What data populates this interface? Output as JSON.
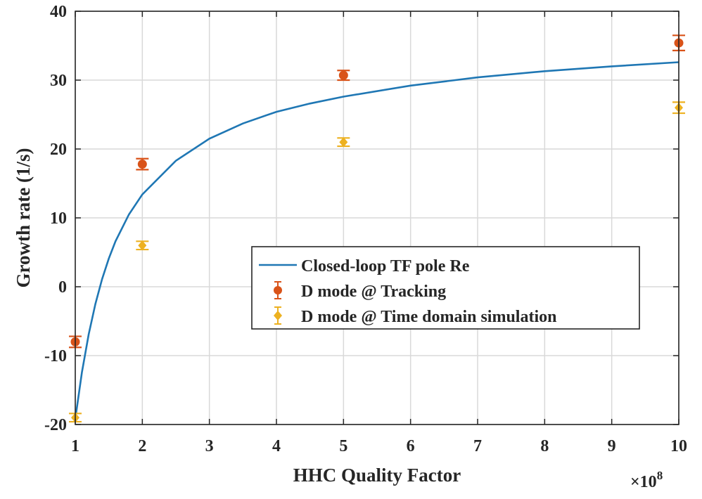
{
  "chart_data": {
    "type": "scatter",
    "xlabel": "HHC Quality Factor",
    "ylabel": "Growth rate (1/s)",
    "x_multiplier_label": "×10",
    "x_multiplier_exponent": "8",
    "xlim": [
      1,
      10
    ],
    "ylim": [
      -20,
      40
    ],
    "x_ticks": [
      1,
      2,
      3,
      4,
      5,
      6,
      7,
      8,
      9,
      10
    ],
    "x_tick_labels": [
      "1",
      "2",
      "3",
      "4",
      "5",
      "6",
      "7",
      "8",
      "9",
      "10"
    ],
    "y_ticks": [
      -20,
      -10,
      0,
      10,
      20,
      30,
      40
    ],
    "y_tick_labels": [
      "-20",
      "-10",
      "0",
      "10",
      "20",
      "30",
      "40"
    ],
    "grid": true,
    "legend_position": "center-right",
    "series": [
      {
        "name": "Closed-loop TF pole Re",
        "kind": "line",
        "color": "#1f77b4",
        "x": [
          1,
          1.1,
          1.2,
          1.3,
          1.4,
          1.5,
          1.6,
          1.8,
          2,
          2.5,
          3,
          3.5,
          4,
          4.5,
          5,
          6,
          7,
          8,
          9,
          10
        ],
        "y": [
          -19.2,
          -12.4,
          -6.9,
          -2.5,
          1.1,
          4.1,
          6.6,
          10.5,
          13.4,
          18.3,
          21.5,
          23.7,
          25.4,
          26.6,
          27.6,
          29.2,
          30.4,
          31.3,
          32.0,
          32.6
        ]
      },
      {
        "name": "D mode @ Tracking",
        "kind": "errorbar",
        "color": "#d95319",
        "x": [
          1,
          2,
          5,
          10
        ],
        "y": [
          -8,
          17.8,
          30.7,
          35.4
        ],
        "yerr": [
          0.8,
          0.8,
          0.7,
          1.1
        ]
      },
      {
        "name": "D mode @ Time domain simulation",
        "kind": "errorbar",
        "color": "#edb120",
        "x": [
          1,
          2,
          5,
          10
        ],
        "y": [
          -19,
          6,
          21,
          26
        ],
        "yerr": [
          0.6,
          0.6,
          0.6,
          0.8
        ]
      }
    ]
  }
}
